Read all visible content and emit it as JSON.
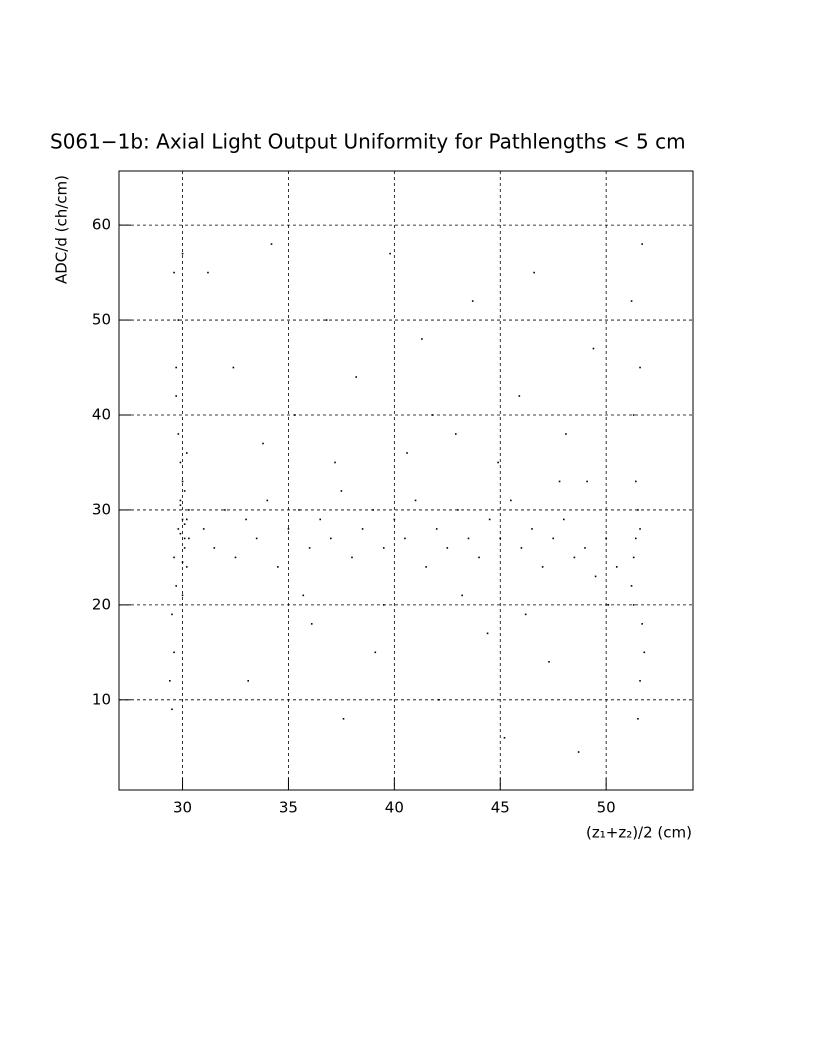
{
  "chart_data": {
    "type": "scatter",
    "title": "S061−1b: Axial Light Output Uniformity for Pathlengths < 5 cm",
    "x_label": "(z₁+z₂)/2 (cm)",
    "y_label": "ADC/d (ch/cm)",
    "xlim": [
      27,
      54.1
    ],
    "ylim": [
      0.5,
      65.7
    ],
    "xticks": [
      30,
      35,
      40,
      45,
      50
    ],
    "yticks": [
      10,
      20,
      30,
      40,
      50,
      60
    ],
    "grid": true,
    "color": "#000000",
    "x": [
      29.8,
      30.1,
      29.9,
      30.2,
      29.6,
      30.0,
      29.7,
      30.3,
      29.9,
      30.1,
      29.5,
      30.0,
      29.8,
      30.2,
      29.6,
      30.1,
      29.9,
      29.7,
      30.0,
      30.2,
      29.4,
      29.8,
      30.0,
      29.5,
      30.1,
      29.9,
      29.7,
      30.3,
      29.6,
      30.0,
      51.3,
      51.5,
      51.2,
      51.6,
      51.4,
      51.7,
      51.3,
      51.6,
      51.5,
      51.2,
      51.7,
      51.4,
      51.6,
      51.3,
      51.8,
      31,
      31.5,
      32,
      32.5,
      33,
      33.5,
      34,
      34.5,
      35,
      35.5,
      36,
      36.5,
      37,
      37.5,
      38,
      38.5,
      39,
      39.5,
      40,
      40.5,
      41,
      41.5,
      42,
      42.5,
      43,
      43.5,
      44,
      44.5,
      45,
      45.5,
      46,
      46.5,
      47,
      47.5,
      48,
      48.5,
      49,
      49.5,
      50,
      50.5,
      31.2,
      32.4,
      33.1,
      34.2,
      35.3,
      36.1,
      36.8,
      37.6,
      38.2,
      39.1,
      39.8,
      40.6,
      41.3,
      42.1,
      42.9,
      43.7,
      44.4,
      45.2,
      45.9,
      46.6,
      47.3,
      48.1,
      48.7,
      49.4,
      50.1,
      33.8,
      37.2,
      41.8,
      44.9,
      47.8,
      35.7,
      39.5,
      43.2,
      46.2,
      49.1
    ],
    "y": [
      28,
      27,
      31,
      29,
      25,
      33,
      22,
      30,
      35,
      26,
      19,
      29,
      38,
      24,
      15,
      32,
      27.5,
      42,
      21,
      36,
      12,
      50,
      57,
      9,
      28.5,
      30.5,
      45,
      27,
      55,
      24.5,
      25,
      30,
      22,
      28,
      33,
      18,
      40,
      12,
      8,
      52,
      58,
      27,
      45,
      20,
      15,
      28,
      26,
      30,
      25,
      29,
      27,
      31,
      24,
      28,
      30,
      26,
      29,
      27,
      32,
      25,
      28,
      30,
      26,
      29,
      27,
      31,
      24,
      28,
      26,
      30,
      27,
      25,
      29,
      27,
      31,
      26,
      28,
      24,
      27,
      29,
      25,
      26,
      23,
      27,
      24,
      55,
      45,
      12,
      58,
      40,
      18,
      50,
      8,
      44,
      15,
      57,
      36,
      48,
      10,
      38,
      52,
      17,
      6,
      42,
      55,
      14,
      38,
      4.5,
      47,
      20,
      37,
      35,
      40,
      35,
      33,
      21,
      20,
      21,
      19,
      33
    ]
  }
}
